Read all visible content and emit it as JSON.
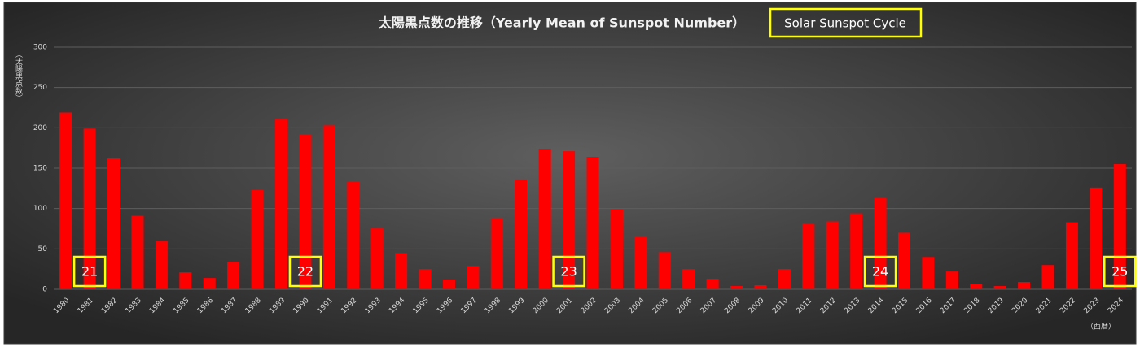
{
  "chart_data": {
    "type": "bar",
    "title": "太陽黒点数の推移（Yearly Mean of Sunspot Number）",
    "legend_label": "Solar Sunspot Cycle",
    "y_label": "（太陽黒点数）",
    "x_label": "（西暦）",
    "categories": [
      "1980",
      "1981",
      "1982",
      "1983",
      "1984",
      "1985",
      "1986",
      "1987",
      "1988",
      "1989",
      "1990",
      "1991",
      "1992",
      "1993",
      "1994",
      "1995",
      "1996",
      "1997",
      "1998",
      "1999",
      "2000",
      "2001",
      "2002",
      "2003",
      "2004",
      "2005",
      "2006",
      "2007",
      "2008",
      "2009",
      "2010",
      "2011",
      "2012",
      "2013",
      "2014",
      "2015",
      "2016",
      "2017",
      "2018",
      "2019",
      "2020",
      "2021",
      "2022",
      "2023",
      "2024"
    ],
    "values": [
      219,
      199,
      162,
      91,
      60,
      21,
      14,
      34,
      123,
      211,
      192,
      203,
      133,
      76,
      45,
      25,
      12,
      29,
      88,
      136,
      174,
      171,
      164,
      99,
      65,
      46,
      25,
      13,
      4,
      5,
      25,
      81,
      84,
      94,
      113,
      70,
      40,
      22,
      7,
      4,
      9,
      30,
      83,
      126,
      155
    ],
    "color": "#ff0000",
    "ylim": [
      0,
      300
    ],
    "yticks": [
      0,
      50,
      100,
      150,
      200,
      250,
      300
    ],
    "grid": true,
    "annotations": [
      {
        "text": "21",
        "category": "1981"
      },
      {
        "text": "22",
        "category": "1990"
      },
      {
        "text": "23",
        "category": "2001"
      },
      {
        "text": "24",
        "category": "2014"
      },
      {
        "text": "25",
        "category": "2024"
      }
    ]
  }
}
